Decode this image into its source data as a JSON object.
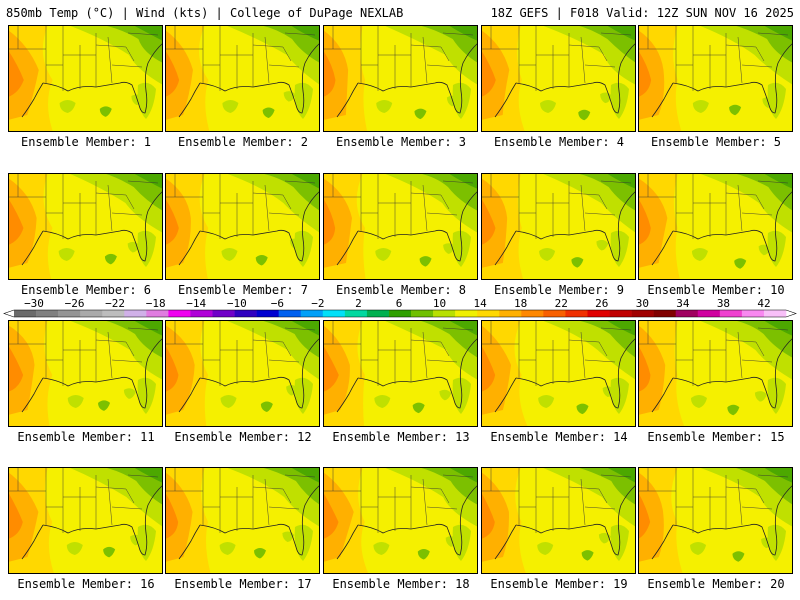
{
  "header": {
    "left": "850mb Temp (°C) | Wind (kts) | College of DuPage NEXLAB",
    "right": "18Z GEFS | F018 Valid: 12Z SUN NOV 16 2025"
  },
  "panels": [
    {
      "caption": "Ensemble Member: 1"
    },
    {
      "caption": "Ensemble Member: 2"
    },
    {
      "caption": "Ensemble Member: 3"
    },
    {
      "caption": "Ensemble Member: 4"
    },
    {
      "caption": "Ensemble Member: 5"
    },
    {
      "caption": "Ensemble Member: 6"
    },
    {
      "caption": "Ensemble Member: 7"
    },
    {
      "caption": "Ensemble Member: 8"
    },
    {
      "caption": "Ensemble Member: 9"
    },
    {
      "caption": "Ensemble Member: 10"
    },
    {
      "caption": "Ensemble Member: 11"
    },
    {
      "caption": "Ensemble Member: 12"
    },
    {
      "caption": "Ensemble Member: 13"
    },
    {
      "caption": "Ensemble Member: 14"
    },
    {
      "caption": "Ensemble Member: 15"
    },
    {
      "caption": "Ensemble Member: 16"
    },
    {
      "caption": "Ensemble Member: 17"
    },
    {
      "caption": "Ensemble Member: 18"
    },
    {
      "caption": "Ensemble Member: 19"
    },
    {
      "caption": "Ensemble Member: 20"
    }
  ],
  "colorbar": {
    "labels": [
      "−30",
      "−26",
      "−22",
      "−18",
      "−14",
      "−10",
      "−6",
      "−2",
      "2",
      "6",
      "10",
      "14",
      "18",
      "22",
      "26",
      "30",
      "34",
      "38",
      "42"
    ],
    "colors": [
      "#6b6b6b",
      "#808080",
      "#959595",
      "#aaaaaa",
      "#bdbdbd",
      "#d0b0e8",
      "#e07ce0",
      "#f000f0",
      "#b000d8",
      "#7000c8",
      "#3000c0",
      "#0000d0",
      "#0060f0",
      "#00a0f8",
      "#00e0f8",
      "#00d8a0",
      "#00b050",
      "#30a000",
      "#70c000",
      "#b8e000",
      "#f0f000",
      "#ffd800",
      "#ffb000",
      "#ff8800",
      "#f86000",
      "#f03000",
      "#e00000",
      "#c00000",
      "#a00000",
      "#800000",
      "#a00060",
      "#d000a0",
      "#f040d0",
      "#f888f0",
      "#f8c0f8"
    ],
    "palette": {
      "green_dark": "#4ca800",
      "green": "#7cc000",
      "yellow_green": "#c0e000",
      "yellow": "#f5f000",
      "yellow_orange": "#ffd800",
      "orange": "#ffb000",
      "orange_dark": "#ff8c00"
    }
  }
}
